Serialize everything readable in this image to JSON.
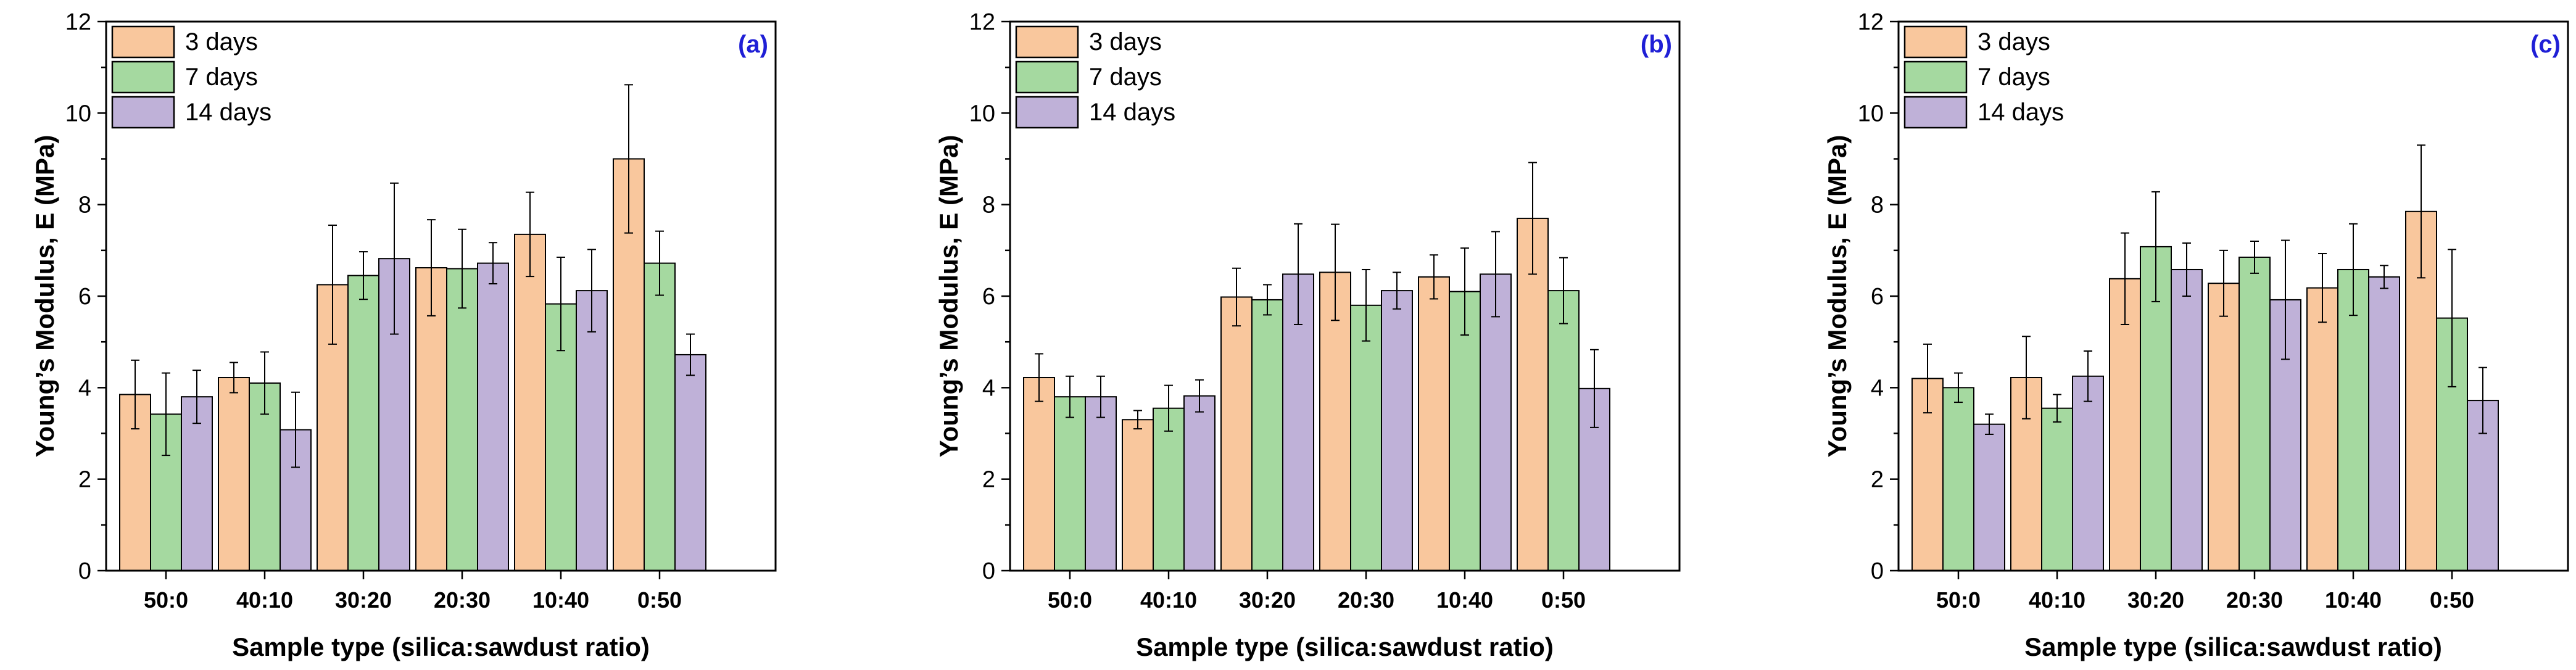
{
  "chart_data": [
    {
      "panel": "(a)",
      "type": "bar",
      "xlabel": "Sample type (silica:sawdust ratio)",
      "ylabel": "Young’s Modulus, E (MPa)",
      "ylim": [
        0,
        12
      ],
      "yticks": [
        "0",
        "2",
        "4",
        "6",
        "8",
        "10",
        "12"
      ],
      "categories": [
        "50:0",
        "40:10",
        "30:20",
        "20:30",
        "10:40",
        "0:50"
      ],
      "legend_position": "top-left",
      "series": [
        {
          "name": "3 days",
          "color": "#F9C79D",
          "values": [
            3.85,
            4.22,
            6.25,
            6.62,
            7.35,
            9.0
          ],
          "errors": [
            0.75,
            0.33,
            1.3,
            1.05,
            0.92,
            1.62
          ]
        },
        {
          "name": "7 days",
          "color": "#A5D9A0",
          "values": [
            3.42,
            4.1,
            6.45,
            6.6,
            5.83,
            6.72
          ],
          "errors": [
            0.9,
            0.68,
            0.52,
            0.86,
            1.02,
            0.7
          ]
        },
        {
          "name": "14 days",
          "color": "#BFB1D8",
          "values": [
            3.8,
            3.08,
            6.82,
            6.72,
            6.12,
            4.72
          ],
          "errors": [
            0.58,
            0.82,
            1.65,
            0.45,
            0.9,
            0.45
          ]
        }
      ]
    },
    {
      "panel": "(b)",
      "type": "bar",
      "xlabel": "Sample type (silica:sawdust ratio)",
      "ylabel": "Young’s Modulus, E (MPa)",
      "ylim": [
        0,
        12
      ],
      "yticks": [
        "0",
        "2",
        "4",
        "6",
        "8",
        "10",
        "12"
      ],
      "categories": [
        "50:0",
        "40:10",
        "30:20",
        "20:30",
        "10:40",
        "0:50"
      ],
      "legend_position": "top-left",
      "series": [
        {
          "name": "3 days",
          "color": "#F9C79D",
          "values": [
            4.22,
            3.3,
            5.98,
            6.52,
            6.42,
            7.7
          ],
          "errors": [
            0.52,
            0.2,
            0.63,
            1.05,
            0.48,
            1.22
          ]
        },
        {
          "name": "7 days",
          "color": "#A5D9A0",
          "values": [
            3.8,
            3.55,
            5.92,
            5.8,
            6.1,
            6.12
          ],
          "errors": [
            0.45,
            0.5,
            0.33,
            0.78,
            0.95,
            0.72
          ]
        },
        {
          "name": "14 days",
          "color": "#BFB1D8",
          "values": [
            3.8,
            3.82,
            6.48,
            6.12,
            6.48,
            3.98
          ],
          "errors": [
            0.45,
            0.35,
            1.1,
            0.4,
            0.93,
            0.85
          ]
        }
      ]
    },
    {
      "panel": "(c)",
      "type": "bar",
      "xlabel": "Sample type (silica:sawdust ratio)",
      "ylabel": "Young’s Modulus, E (MPa)",
      "ylim": [
        0,
        12
      ],
      "yticks": [
        "0",
        "2",
        "4",
        "6",
        "8",
        "10",
        "12"
      ],
      "categories": [
        "50:0",
        "40:10",
        "30:20",
        "20:30",
        "10:40",
        "0:50"
      ],
      "legend_position": "top-left",
      "series": [
        {
          "name": "3 days",
          "color": "#F9C79D",
          "values": [
            4.2,
            4.22,
            6.38,
            6.28,
            6.18,
            7.85
          ],
          "errors": [
            0.75,
            0.9,
            1.0,
            0.72,
            0.75,
            1.45
          ]
        },
        {
          "name": "7 days",
          "color": "#A5D9A0",
          "values": [
            4.0,
            3.55,
            7.08,
            6.85,
            6.58,
            5.52
          ],
          "errors": [
            0.32,
            0.3,
            1.2,
            0.35,
            1.0,
            1.5
          ]
        },
        {
          "name": "14 days",
          "color": "#BFB1D8",
          "values": [
            3.2,
            4.25,
            6.58,
            5.92,
            6.42,
            3.72
          ],
          "errors": [
            0.22,
            0.55,
            0.58,
            1.3,
            0.25,
            0.72
          ]
        }
      ]
    }
  ]
}
